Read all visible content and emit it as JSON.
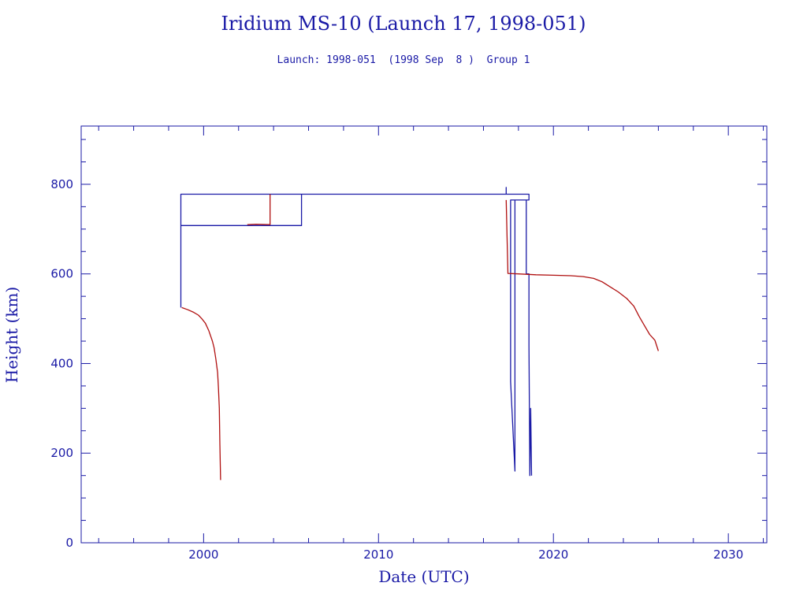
{
  "chart_data": {
    "type": "line",
    "title": "Iridium MS-10 (Launch 17, 1998-051)",
    "subtitle": "Launch: 1998-051  (1998 Sep  8 )  Group 1",
    "xlabel": "Date (UTC)",
    "ylabel": "Height (km)",
    "xlim": [
      1993.0,
      2032.2
    ],
    "ylim": [
      0,
      930
    ],
    "x_ticks": [
      2000,
      2010,
      2020,
      2030
    ],
    "y_ticks": [
      0,
      200,
      400,
      600,
      800
    ],
    "x_minor_step": 2,
    "y_minor_step": 50,
    "grid": false,
    "series": [
      {
        "color": "#1a1aa6",
        "points": [
          [
            1998.7,
            525
          ],
          [
            1998.7,
            778
          ],
          [
            2005.6,
            778
          ],
          [
            2005.6,
            708
          ],
          [
            1998.7,
            708
          ],
          [
            1998.7,
            778
          ],
          [
            2017.3,
            778
          ],
          [
            2017.3,
            793
          ],
          [
            2017.3,
            778
          ],
          [
            2018.6,
            778
          ],
          [
            2018.6,
            765
          ],
          [
            2017.55,
            765
          ],
          [
            2017.55,
            360
          ],
          [
            2017.8,
            160
          ],
          [
            2017.8,
            765
          ],
          [
            2018.45,
            765
          ],
          [
            2018.45,
            600
          ],
          [
            2018.6,
            600
          ],
          [
            2018.6,
            440
          ],
          [
            2018.65,
            150
          ],
          [
            2018.7,
            300
          ],
          [
            2018.75,
            150
          ]
        ]
      },
      {
        "color": "#b01010",
        "points": [
          [
            1998.75,
            525
          ],
          [
            1999.1,
            520
          ],
          [
            1999.4,
            515
          ],
          [
            1999.7,
            508
          ],
          [
            1999.9,
            500
          ],
          [
            2000.1,
            490
          ],
          [
            2000.3,
            473
          ],
          [
            2000.5,
            450
          ],
          [
            2000.6,
            435
          ],
          [
            2000.7,
            410
          ],
          [
            2000.8,
            380
          ],
          [
            2000.85,
            345
          ],
          [
            2000.9,
            300
          ],
          [
            2000.93,
            220
          ],
          [
            2000.97,
            140
          ]
        ]
      },
      {
        "color": "#b01010",
        "points": [
          [
            2002.5,
            710
          ],
          [
            2003.0,
            711
          ],
          [
            2003.8,
            710
          ],
          [
            2003.8,
            778
          ]
        ]
      },
      {
        "color": "#b01010",
        "points": [
          [
            2017.3,
            765
          ],
          [
            2017.4,
            601
          ],
          [
            2018.0,
            600
          ],
          [
            2019.0,
            598
          ],
          [
            2020.0,
            597
          ],
          [
            2021.0,
            596
          ],
          [
            2021.7,
            594
          ],
          [
            2022.3,
            590
          ],
          [
            2022.8,
            582
          ],
          [
            2023.2,
            572
          ],
          [
            2023.7,
            560
          ],
          [
            2024.2,
            545
          ],
          [
            2024.6,
            528
          ],
          [
            2024.9,
            505
          ],
          [
            2025.2,
            485
          ],
          [
            2025.5,
            465
          ],
          [
            2025.8,
            452
          ],
          [
            2026.0,
            428
          ]
        ]
      }
    ]
  }
}
